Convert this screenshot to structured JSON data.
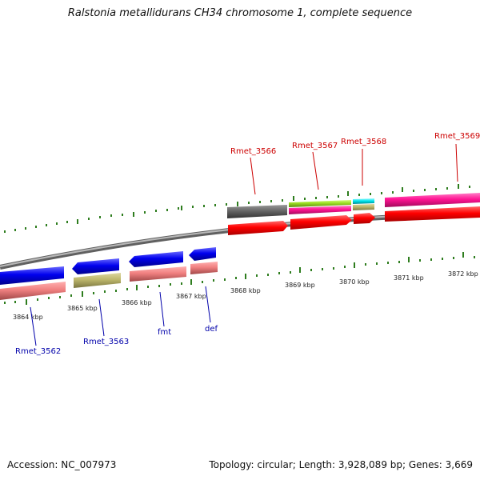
{
  "title": "Ralstonia metallidurans CH34 chromosome 1, complete sequence",
  "footer": {
    "accession": "Accession: NC_007973",
    "stats": "Topology: circular; Length: 3,928,089 bp; Genes: 3,669"
  },
  "ruler": {
    "kbp_labels": [
      "3864 kbp",
      "3865 kbp",
      "3866 kbp",
      "3867 kbp",
      "3868 kbp",
      "3869 kbp",
      "3870 kbp",
      "3871 kbp",
      "3872 kbp"
    ]
  },
  "genes": {
    "top": [
      "Rmet_3566",
      "Rmet_3567",
      "Rmet_3568",
      "Rmet_3569"
    ],
    "bottom": [
      "Rmet_3562",
      "Rmet_3563",
      "fmt",
      "def"
    ]
  },
  "colors": {
    "top_label": "#cc0000",
    "bottom_label": "#0000aa",
    "tick": "#2e7d1e",
    "forward_cds": "#ff0000",
    "reverse_cds": "#0000ee",
    "forward_gene": "#ff1493",
    "reverse_gene": "#f08080"
  }
}
